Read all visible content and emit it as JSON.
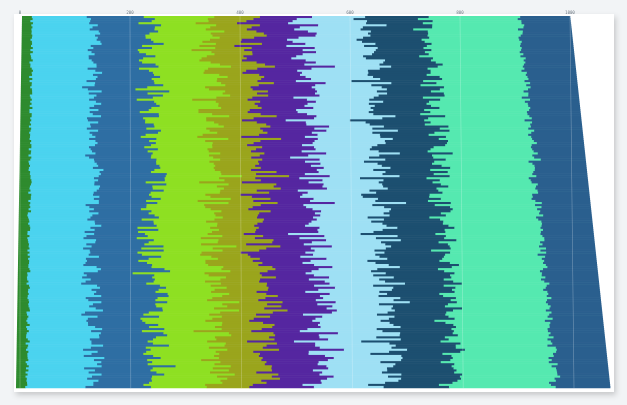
{
  "chart_data": {
    "type": "bar",
    "stacked": true,
    "orientation": "horizontal",
    "title": "",
    "xlabel": "",
    "ylabel": "",
    "x_ticks": [
      "0",
      "200",
      "400",
      "600",
      "800",
      "1000"
    ],
    "xlim": [
      0,
      1000
    ],
    "grid": true,
    "legend": "none",
    "rows": 180,
    "series": [
      {
        "color": "#2e8b2e",
        "mean": 18,
        "jitter": 3
      },
      {
        "color": "#4bd3ef",
        "mean": 112,
        "jitter": 16
      },
      {
        "color": "#2f6ea3",
        "mean": 104,
        "jitter": 22
      },
      {
        "color": "#8ee021",
        "mean": 112,
        "jitter": 24
      },
      {
        "color": "#9aa51c",
        "mean": 80,
        "jitter": 22
      },
      {
        "color": "#5428a0",
        "mean": 92,
        "jitter": 24
      },
      {
        "color": "#9ee0f4",
        "mean": 118,
        "jitter": 24
      },
      {
        "color": "#1f4f6f",
        "mean": 104,
        "jitter": 24
      },
      {
        "color": "#55e9b0",
        "mean": 168,
        "jitter": 20
      },
      {
        "color": "#2a5f8e",
        "mean": 92,
        "jitter": 6
      }
    ]
  }
}
